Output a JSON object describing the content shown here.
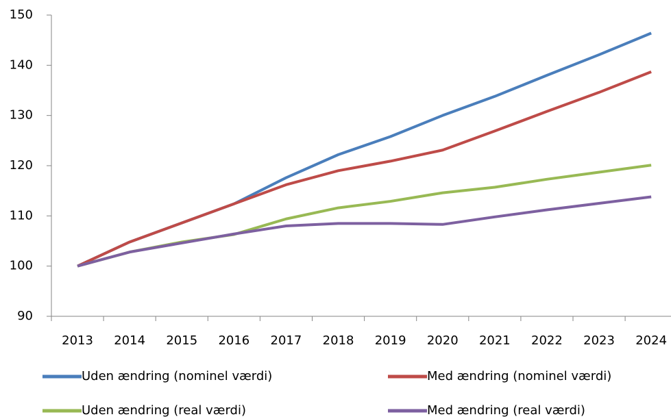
{
  "chart_data": {
    "type": "line",
    "categories": [
      "2013",
      "2014",
      "2015",
      "2016",
      "2017",
      "2018",
      "2019",
      "2020",
      "2021",
      "2022",
      "2023",
      "2024"
    ],
    "series": [
      {
        "name": "Uden ændring (nominel værdi)",
        "color": "#4a7ebb",
        "values": [
          100,
          104.8,
          108.6,
          112.4,
          117.6,
          122.2,
          125.8,
          130,
          133.8,
          138,
          142.1,
          146.4
        ]
      },
      {
        "name": "Med ændring (nominel værdi)",
        "color": "#be4b48",
        "values": [
          100,
          104.8,
          108.6,
          112.4,
          116.2,
          119,
          120.9,
          123.1,
          126.9,
          130.8,
          134.6,
          138.7
        ]
      },
      {
        "name": "Uden ændring (real værdi)",
        "color": "#98b954",
        "values": [
          100,
          102.8,
          104.8,
          106.3,
          109.4,
          111.6,
          112.9,
          114.6,
          115.7,
          117.3,
          118.7,
          120.1
        ]
      },
      {
        "name": "Med ændring (real værdi)",
        "color": "#7d60a0",
        "values": [
          100,
          102.8,
          104.6,
          106.4,
          108,
          108.5,
          108.5,
          108.3,
          109.8,
          111.2,
          112.5,
          113.8
        ]
      }
    ],
    "ylim": [
      90,
      150
    ],
    "yticks": [
      90,
      100,
      110,
      120,
      130,
      140,
      150
    ],
    "grid": false,
    "legend": "bottom"
  }
}
